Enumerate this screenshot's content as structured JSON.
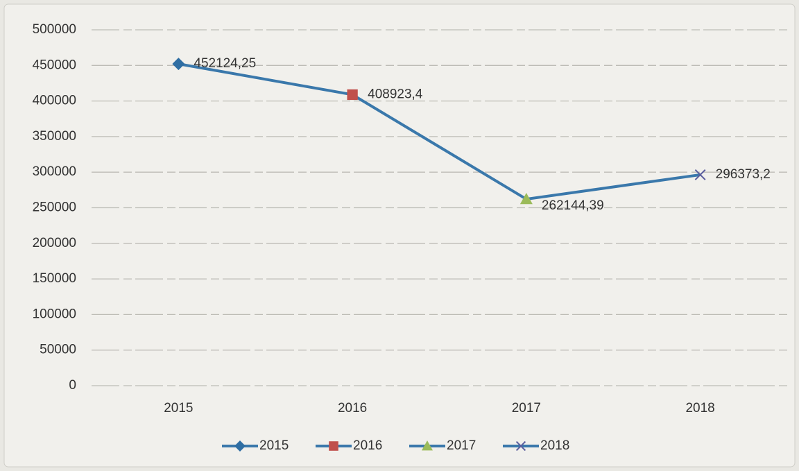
{
  "chart_data": {
    "type": "line",
    "categories": [
      "2015",
      "2016",
      "2017",
      "2018"
    ],
    "values": [
      452124.25,
      408923.4,
      262144.39,
      296373.2
    ],
    "value_labels": [
      "452124,25",
      "408923,4",
      "262144,39",
      "296373,2"
    ],
    "color": "#3a78ab",
    "point_colors": [
      "#2f6ea3",
      "#c0504d",
      "#9bbb59",
      "#5b5e9e"
    ],
    "markers": [
      "diamond",
      "square",
      "triangle",
      "x"
    ],
    "ylim": [
      0,
      500000
    ],
    "yticks": [
      0,
      50000,
      100000,
      150000,
      200000,
      250000,
      300000,
      350000,
      400000,
      450000,
      500000
    ],
    "grid": true,
    "legend": "bottom"
  }
}
